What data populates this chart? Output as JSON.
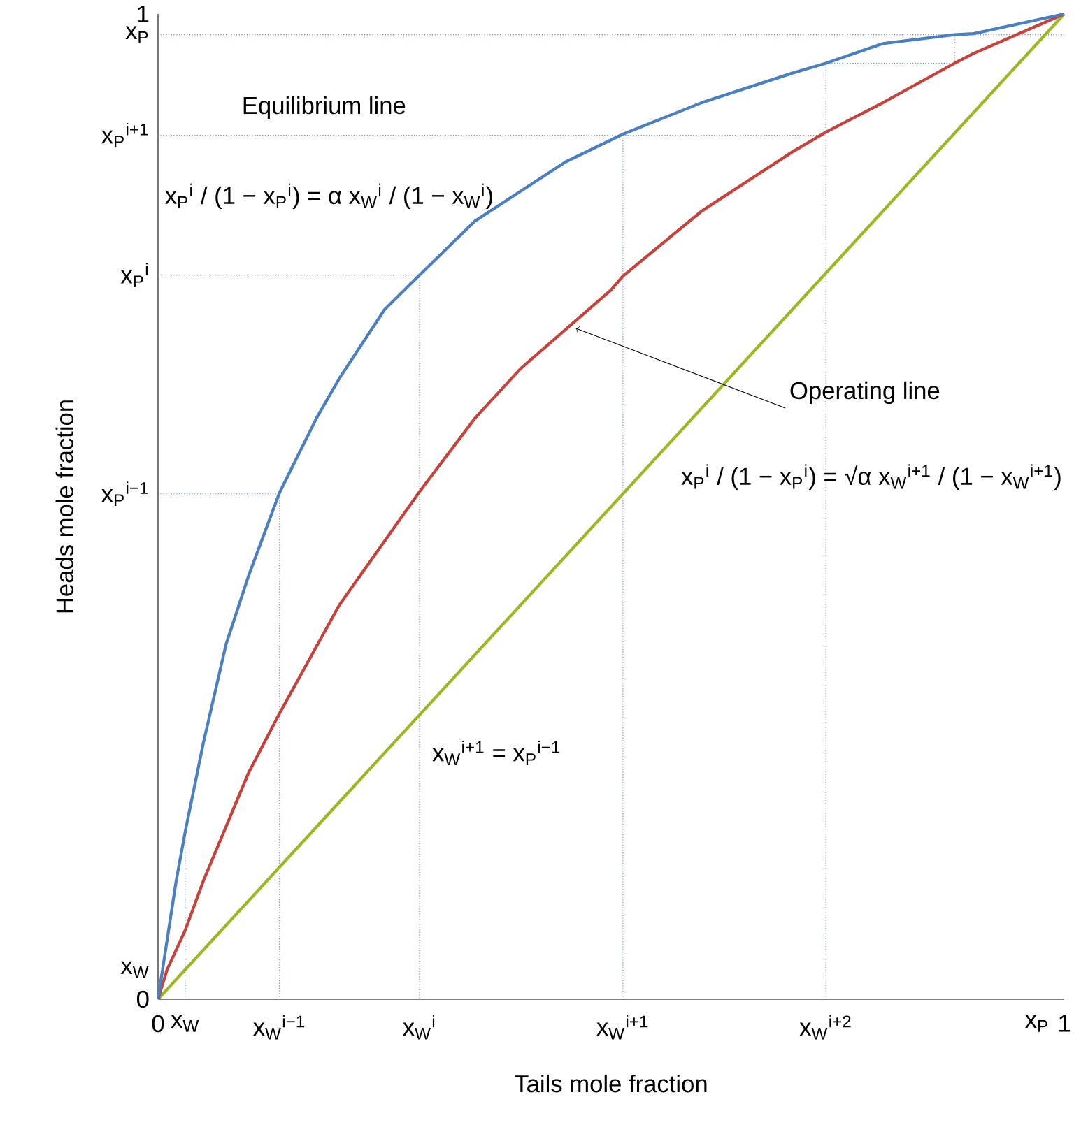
{
  "chart_data": {
    "type": "line",
    "xlabel": "Tails mole fraction",
    "ylabel": "Heads mole fraction",
    "xlim": [
      0,
      1
    ],
    "ylim": [
      0,
      1
    ],
    "xticks": [
      {
        "value": 0,
        "label": "0"
      },
      {
        "value": 0.03,
        "label": "x$_{W}$"
      },
      {
        "value": 0.134,
        "label": "x$_{W}$$^{i−1}$"
      },
      {
        "value": 0.2885,
        "label": "x$_{W}$$^{i}$"
      },
      {
        "value": 0.513,
        "label": "x$_{W}$$^{i+1}$"
      },
      {
        "value": 0.737,
        "label": "x$_{W}$$^{i+2}$"
      },
      {
        "value": 0.97,
        "label": "x$_{P}$"
      },
      1
    ],
    "yticks": [
      {
        "value": 0,
        "label": "0"
      },
      {
        "value": 0.03,
        "label": "x$_{W}$"
      },
      {
        "value": 0.513,
        "label": "x$_{P}$$^{i−1}$"
      },
      {
        "value": 0.735,
        "label": "x$_{P}$$^{i}$"
      },
      {
        "value": 0.877,
        "label": "x$_{P}$$^{i+1}$"
      },
      {
        "value": 0.979,
        "label": "x$_{P}$"
      },
      {
        "value": 1,
        "label": "1"
      }
    ],
    "annotations": [
      "Equilibrium line",
      "x$_{P}$$^{i}$ / (1 − x$_{P}$$^{i}$) = α x$_{W}$$^{i}$ / (1 − x$_{W}$$^{i}$)",
      {
        "text": "Operating line",
        "x": 0.461,
        "y": 0.681
      },
      "x$_{P}$$^{i}$ / (1 − x$_{P}$$^{i}$) = √α x$_{W}$$^{i+1}$ / (1 − x$_{W}$$^{i+1}$)",
      "x$_{W}$$^{i+1}$ = x$_{P}$$^{i−1}$"
    ],
    "series": [
      {
        "type": "line",
        "color": "#4a7fc1",
        "line_style": "dotted",
        "x": [
          0,
          0.134,
          0.134
        ],
        "values": [
          0.513,
          0.513,
          0
        ]
      },
      {
        "type": "line",
        "color": "#4a7fc1",
        "line_style": "dotted",
        "x": [
          0,
          0.2885,
          0.2885
        ],
        "values": [
          0.735,
          0.735,
          0
        ]
      },
      {
        "type": "line",
        "color": "#4a7fc1",
        "line_style": "dotted",
        "x": [
          0,
          0.737
        ],
        "values": [
          0.877,
          0.877
        ]
      },
      {
        "type": "line",
        "color": "#4a7fc1",
        "line_style": "dotted",
        "x": [
          0.513,
          0.513
        ],
        "values": [
          0.877,
          0
        ]
      },
      {
        "type": "line",
        "color": "#4a7fc1",
        "line_style": "dotted",
        "x": [
          0.737,
          0.737,
          0.879,
          0.879
        ],
        "values": [
          0,
          0.95,
          0.95,
          0.979
        ]
      },
      {
        "type": "line",
        "color": "#4a7fc1",
        "line_style": "dotted",
        "x": [
          0,
          1
        ],
        "values": [
          0.979,
          0.979
        ]
      },
      {
        "type": "line",
        "color": "#4a7fc1",
        "line_style": "dotted",
        "x": [
          0.03,
          0.03
        ],
        "values": [
          0,
          0.175
        ]
      },
      {
        "type": "line",
        "color": "#9ab81f",
        "x": [
          0,
          1
        ],
        "values": [
          0,
          1
        ]
      },
      {
        "type": "line",
        "color": "#c8413a",
        "x": [
          0,
          0.01,
          0.03,
          0.05,
          0.1,
          0.134,
          0.2,
          0.2885,
          0.35,
          0.4,
          0.5,
          0.513,
          0.6,
          0.7,
          0.737,
          0.8,
          0.879,
          0.9,
          1
        ],
        "values": [
          0,
          0.03,
          0.07,
          0.12,
          0.23,
          0.29,
          0.4,
          0.515,
          0.59,
          0.64,
          0.72,
          0.734,
          0.8,
          0.86,
          0.88,
          0.91,
          0.95,
          0.96,
          1
        ]
      },
      {
        "type": "line",
        "color": "#4a7fc1",
        "x": [
          0,
          0.01,
          0.02,
          0.03,
          0.05,
          0.075,
          0.1,
          0.134,
          0.175,
          0.2,
          0.25,
          0.2885,
          0.35,
          0.4,
          0.45,
          0.513,
          0.6,
          0.7,
          0.737,
          0.8,
          0.879,
          0.9,
          1
        ],
        "values": [
          0,
          0.06,
          0.12,
          0.17,
          0.26,
          0.36,
          0.43,
          0.514,
          0.59,
          0.63,
          0.7,
          0.735,
          0.79,
          0.82,
          0.85,
          0.878,
          0.91,
          0.94,
          0.95,
          0.97,
          0.979,
          0.98,
          1
        ]
      }
    ]
  }
}
